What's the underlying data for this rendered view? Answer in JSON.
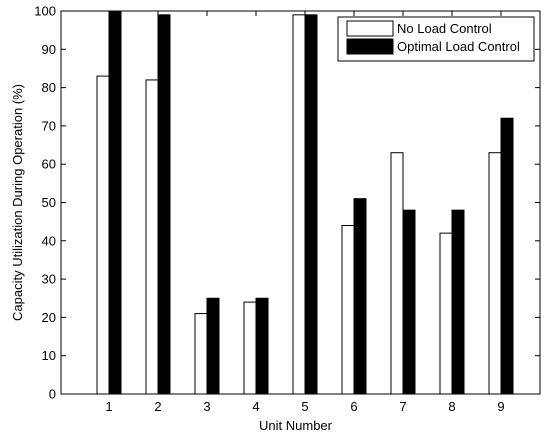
{
  "chart_data": {
    "type": "bar",
    "title": "",
    "xlabel": "Unit Number",
    "ylabel": "Capacity Utilization During Operation (%)",
    "categories": [
      "1",
      "2",
      "3",
      "4",
      "5",
      "6",
      "7",
      "8",
      "9"
    ],
    "ylim": [
      0,
      100
    ],
    "yticks": [
      0,
      10,
      20,
      30,
      40,
      50,
      60,
      70,
      80,
      90,
      100
    ],
    "grid": false,
    "legend_position": "top-right",
    "series": [
      {
        "name": "No Load Control",
        "color": "#ffffff",
        "values": [
          83,
          82,
          21,
          24,
          99,
          44,
          63,
          42,
          63
        ]
      },
      {
        "name": "Optimal Load Control",
        "color": "#000000",
        "values": [
          100,
          99,
          25,
          25,
          99,
          51,
          48,
          48,
          72
        ]
      }
    ]
  }
}
